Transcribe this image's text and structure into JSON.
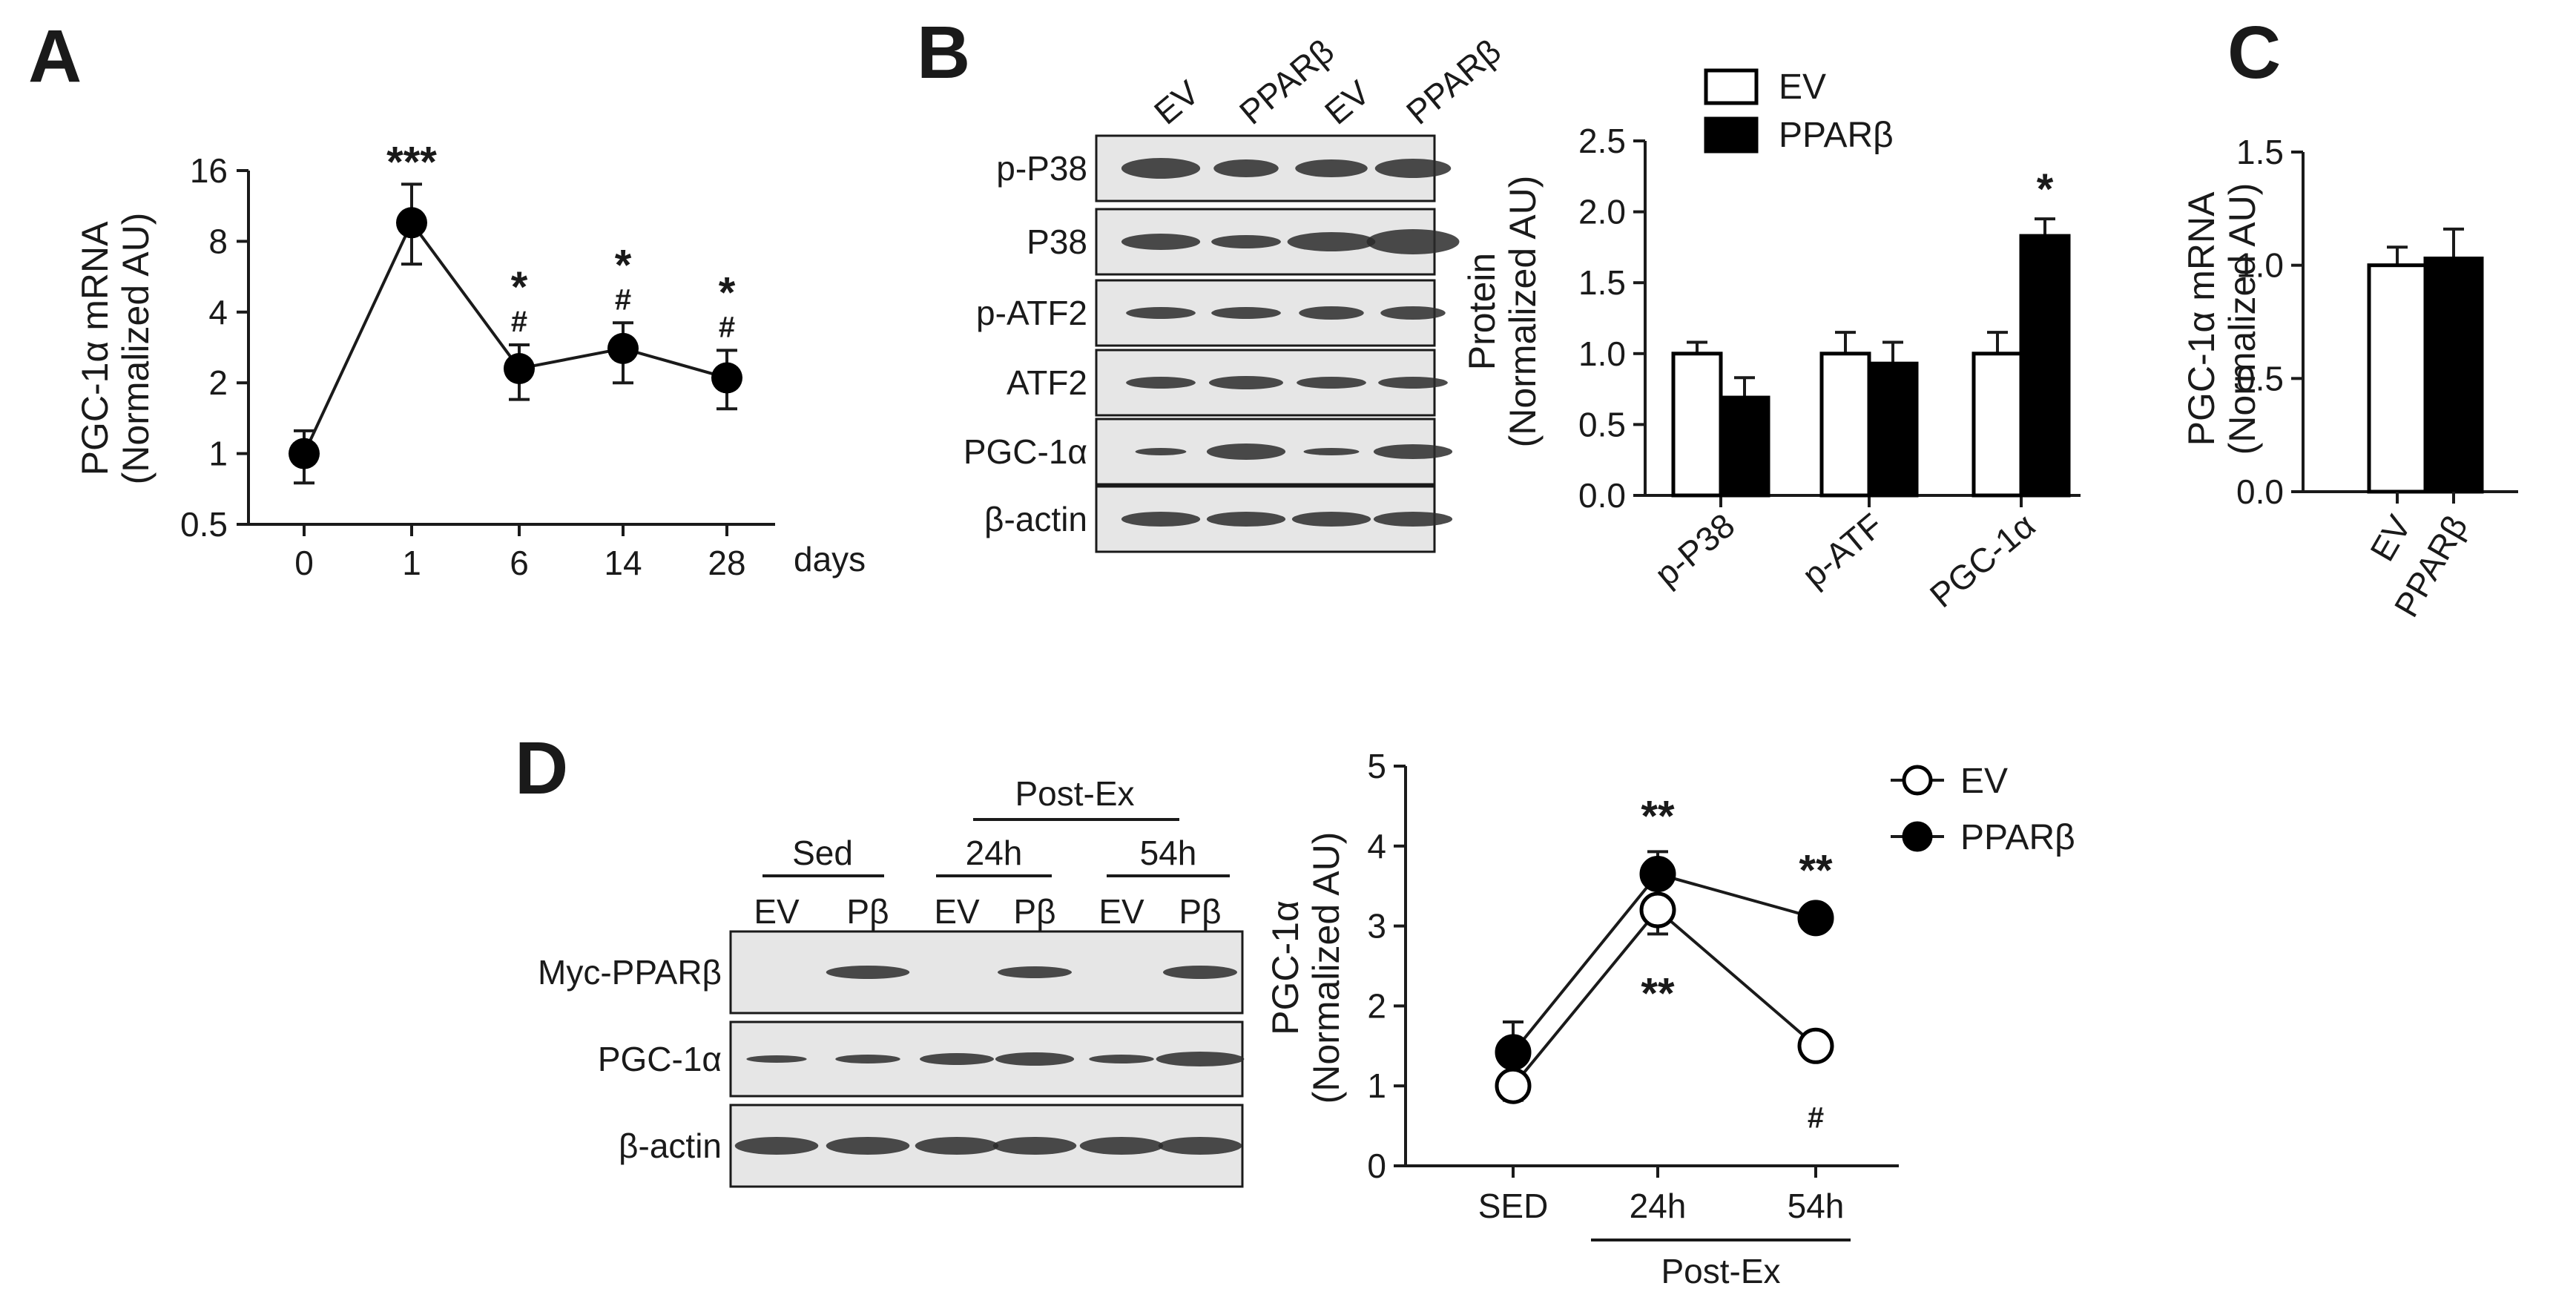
{
  "colors": {
    "ink": "#1a1a1a",
    "blot_bg": "#e6e6e6",
    "band": "#2b2b2b"
  },
  "panels": {
    "A": {
      "letter": "A",
      "days_label": "days",
      "ylabel_1": "PGC-1α mRNA",
      "ylabel_2": "(Normalized AU)"
    },
    "B": {
      "letter": "B",
      "lanes": [
        "EV",
        "PPARβ",
        "EV",
        "PPARβ"
      ],
      "rows": [
        "p-P38",
        "P38",
        "p-ATF2",
        "ATF2",
        "PGC-1α",
        "β-actin"
      ],
      "ylabel_1": "Protein",
      "ylabel_2": "(Normalized AU)"
    },
    "C": {
      "letter": "C",
      "ylabel_1": "PGC-1α mRNA",
      "ylabel_2": "(Normalized AU)"
    },
    "D": {
      "letter": "D",
      "group_sed": "Sed",
      "group_postex": "Post-Ex",
      "sub_24h": "24h",
      "sub_54h": "54h",
      "lanes": [
        "EV",
        "Pβ",
        "EV",
        "Pβ",
        "EV",
        "Pβ"
      ],
      "rows": [
        "Myc-PPARβ",
        "PGC-1α",
        "β-actin"
      ],
      "ylabel_1": "PGC-1α",
      "ylabel_2": "(Normalized AU)",
      "xgroup_label": "Post-Ex"
    }
  },
  "chart_data": [
    {
      "panel": "A",
      "type": "line",
      "x": [
        "0",
        "1",
        "6",
        "14",
        "28"
      ],
      "values": [
        1.0,
        9.6,
        2.3,
        2.8,
        2.1
      ],
      "error_high": [
        1.25,
        14.0,
        2.9,
        3.6,
        2.75
      ],
      "error_low": [
        0.75,
        6.4,
        1.7,
        2.0,
        1.55
      ],
      "yscale": "log2",
      "yticks": [
        "0.5",
        "1",
        "2",
        "4",
        "8",
        "16"
      ],
      "ylim": [
        0.5,
        16
      ],
      "xlabel": "days",
      "ylabel": "PGC-1α mRNA (Normalized AU)",
      "annotations": [
        {
          "x": "1",
          "stars": "***",
          "hash": ""
        },
        {
          "x": "6",
          "stars": "*",
          "hash": "#"
        },
        {
          "x": "14",
          "stars": "*",
          "hash": "#"
        },
        {
          "x": "28",
          "stars": "*",
          "hash": "#"
        }
      ]
    },
    {
      "panel": "B",
      "type": "bar",
      "categories": [
        "p-P38",
        "p-ATF",
        "PGC-1α"
      ],
      "series": [
        {
          "name": "EV",
          "values": [
            1.0,
            1.0,
            1.0
          ],
          "errors": [
            0.08,
            0.15,
            0.15
          ],
          "fill": "#ffffff"
        },
        {
          "name": "PPARβ",
          "values": [
            0.69,
            0.93,
            1.83
          ],
          "errors": [
            0.14,
            0.15,
            0.12
          ],
          "fill": "#000000"
        }
      ],
      "yticks": [
        "0.0",
        "0.5",
        "1.0",
        "1.5",
        "2.0",
        "2.5"
      ],
      "ylim": [
        0,
        2.5
      ],
      "ylabel": "Protein (Normalized AU)",
      "legend": "top",
      "annotations": [
        {
          "category": "PGC-1α",
          "series": "PPARβ",
          "text": "*"
        }
      ]
    },
    {
      "panel": "C",
      "type": "bar",
      "categories": [
        "EV",
        "PPARβ"
      ],
      "values": [
        1.0,
        1.03
      ],
      "errors": [
        0.08,
        0.13
      ],
      "fills": [
        "#ffffff",
        "#000000"
      ],
      "yticks": [
        "0.0",
        "0.5",
        "1.0",
        "1.5"
      ],
      "ylim": [
        0,
        1.5
      ],
      "ylabel": "PGC-1α mRNA (Normalized AU)"
    },
    {
      "panel": "D",
      "type": "line",
      "x": [
        "SED",
        "24h",
        "54h"
      ],
      "series": [
        {
          "name": "EV",
          "values": [
            1.0,
            3.2,
            1.5
          ],
          "errors": [
            0.18,
            0.3,
            0.0
          ],
          "marker": "open"
        },
        {
          "name": "PPARβ",
          "values": [
            1.42,
            3.65,
            3.1
          ],
          "errors": [
            0.38,
            0.28,
            0.15
          ],
          "marker": "filled"
        }
      ],
      "yticks": [
        "0",
        "1",
        "2",
        "3",
        "4",
        "5"
      ],
      "ylim": [
        0,
        5
      ],
      "ylabel": "PGC-1α (Normalized AU)",
      "legend": "top-right",
      "annotations": [
        {
          "x": "24h",
          "position": "above",
          "text": "**"
        },
        {
          "x": "24h",
          "position": "below",
          "text": "**"
        },
        {
          "x": "54h",
          "position": "above",
          "text": "**"
        },
        {
          "x": "54h",
          "position": "below",
          "text": "#"
        }
      ]
    }
  ]
}
